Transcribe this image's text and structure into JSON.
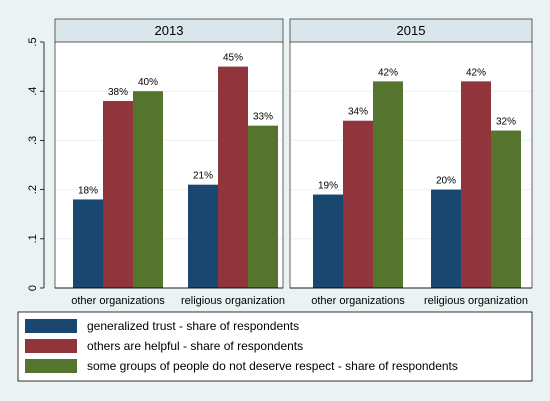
{
  "chart_data": [
    {
      "type": "bar",
      "title": "2013",
      "categories": [
        "other organizations",
        "religious organization"
      ],
      "series": [
        {
          "name": "generalized trust - share of respondents",
          "values": [
            0.18,
            0.21
          ]
        },
        {
          "name": "others are helpful - share of respondents",
          "values": [
            0.38,
            0.45
          ]
        },
        {
          "name": "some groups of people do not deserve respect - share of respondents",
          "values": [
            0.4,
            0.33
          ]
        }
      ],
      "data_labels": [
        [
          "18%",
          "21%"
        ],
        [
          "38%",
          "45%"
        ],
        [
          "40%",
          "33%"
        ]
      ],
      "ylim": [
        0,
        0.5
      ],
      "yticks": [
        0,
        0.1,
        0.2,
        0.3,
        0.4,
        0.5
      ],
      "ytick_labels": [
        "0",
        ".1",
        ".2",
        ".3",
        ".4",
        ".5"
      ],
      "grid": true
    },
    {
      "type": "bar",
      "title": "2015",
      "categories": [
        "other organizations",
        "religious organization"
      ],
      "series": [
        {
          "name": "generalized trust - share of respondents",
          "values": [
            0.19,
            0.2
          ]
        },
        {
          "name": "others are helpful - share of respondents",
          "values": [
            0.34,
            0.42
          ]
        },
        {
          "name": "some groups of people do not deserve respect - share of respondents",
          "values": [
            0.42,
            0.32
          ]
        }
      ],
      "data_labels": [
        [
          "19%",
          "20%"
        ],
        [
          "34%",
          "42%"
        ],
        [
          "42%",
          "32%"
        ]
      ],
      "ylim": [
        0,
        0.5
      ],
      "yticks": [
        0,
        0.1,
        0.2,
        0.3,
        0.4,
        0.5
      ],
      "ytick_labels": [
        "0",
        ".1",
        ".2",
        ".3",
        ".4",
        ".5"
      ],
      "grid": true
    }
  ],
  "legend": {
    "placement": "bottom",
    "items": [
      {
        "label": "generalized trust - share of respondents",
        "color": "#1a476f"
      },
      {
        "label": "others are helpful - share of respondents",
        "color": "#90353b"
      },
      {
        "label": "some groups of people do not deserve respect - share of respondents",
        "color": "#55752f"
      }
    ]
  },
  "colors": {
    "series": [
      "#1a476f",
      "#90353b",
      "#55752f"
    ],
    "background": "#eaf2f3",
    "panel_header": "#d9e6eb",
    "grid": "#eaf2f3"
  }
}
